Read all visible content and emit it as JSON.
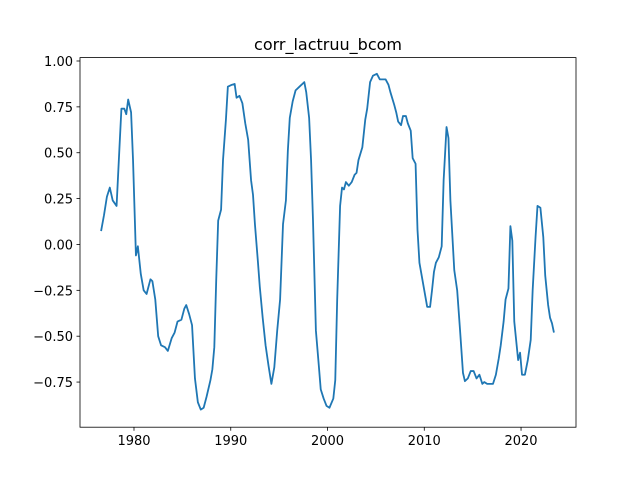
{
  "chart_data": {
    "type": "line",
    "title": "corr_lactruu_bcom",
    "color": "#1f77b4",
    "x": [
      1976.6,
      1976.9,
      1977.2,
      1977.5,
      1977.8,
      1978.2,
      1978.5,
      1978.7,
      1979.0,
      1979.2,
      1979.4,
      1979.7,
      1979.9,
      1980.2,
      1980.4,
      1980.7,
      1981.0,
      1981.3,
      1981.7,
      1981.9,
      1982.2,
      1982.5,
      1982.8,
      1983.2,
      1983.5,
      1983.9,
      1984.2,
      1984.5,
      1984.9,
      1985.2,
      1985.4,
      1985.7,
      1986.0,
      1986.3,
      1986.6,
      1986.9,
      1987.2,
      1987.5,
      1987.9,
      1988.1,
      1988.3,
      1988.5,
      1988.7,
      1989.0,
      1989.2,
      1989.5,
      1989.7,
      1990.1,
      1990.4,
      1990.6,
      1990.9,
      1991.2,
      1991.5,
      1991.8,
      1992.1,
      1992.3,
      1992.5,
      1992.8,
      1993.0,
      1993.3,
      1993.6,
      1993.9,
      1994.2,
      1994.5,
      1994.8,
      1995.1,
      1995.4,
      1995.7,
      1995.9,
      1996.1,
      1996.4,
      1996.7,
      1997.1,
      1997.6,
      1997.8,
      1998.1,
      1998.3,
      1998.5,
      1998.8,
      1999.1,
      1999.3,
      1999.6,
      1999.9,
      2000.2,
      2000.6,
      2000.8,
      2001.0,
      2001.3,
      2001.5,
      2001.7,
      2001.9,
      2002.2,
      2002.5,
      2002.8,
      2003.0,
      2003.2,
      2003.6,
      2003.9,
      2004.1,
      2004.4,
      2004.7,
      2005.1,
      2005.4,
      2005.7,
      2006.0,
      2006.3,
      2006.5,
      2006.9,
      2007.1,
      2007.3,
      2007.6,
      2007.8,
      2008.1,
      2008.3,
      2008.6,
      2008.8,
      2009.1,
      2009.3,
      2009.5,
      2009.8,
      2010.0,
      2010.3,
      2010.6,
      2010.8,
      2011.0,
      2011.2,
      2011.5,
      2011.8,
      2012.0,
      2012.3,
      2012.5,
      2012.7,
      2013.1,
      2013.4,
      2013.7,
      2014.0,
      2014.2,
      2014.5,
      2014.8,
      2015.1,
      2015.4,
      2015.7,
      2016.0,
      2016.2,
      2016.5,
      2016.8,
      2017.1,
      2017.4,
      2017.7,
      2017.9,
      2018.2,
      2018.4,
      2018.7,
      2018.9,
      2019.1,
      2019.3,
      2019.7,
      2019.9,
      2020.1,
      2020.4,
      2020.7,
      2021.0,
      2021.2,
      2021.5,
      2021.7,
      2022.0,
      2022.3,
      2022.5,
      2022.8,
      2023.0,
      2023.2,
      2023.4
    ],
    "values": [
      0.073,
      0.16,
      0.26,
      0.31,
      0.24,
      0.21,
      0.53,
      0.74,
      0.74,
      0.71,
      0.79,
      0.72,
      0.46,
      -0.06,
      -0.01,
      -0.16,
      -0.25,
      -0.27,
      -0.19,
      -0.2,
      -0.3,
      -0.5,
      -0.55,
      -0.56,
      -0.58,
      -0.51,
      -0.48,
      -0.42,
      -0.41,
      -0.35,
      -0.33,
      -0.38,
      -0.44,
      -0.73,
      -0.86,
      -0.9,
      -0.89,
      -0.83,
      -0.74,
      -0.68,
      -0.56,
      -0.19,
      0.13,
      0.19,
      0.46,
      0.68,
      0.86,
      0.87,
      0.875,
      0.8,
      0.81,
      0.77,
      0.66,
      0.57,
      0.35,
      0.27,
      0.11,
      -0.09,
      -0.23,
      -0.4,
      -0.55,
      -0.66,
      -0.76,
      -0.67,
      -0.47,
      -0.3,
      0.11,
      0.24,
      0.51,
      0.69,
      0.78,
      0.84,
      0.86,
      0.885,
      0.83,
      0.69,
      0.46,
      0.13,
      -0.47,
      -0.66,
      -0.79,
      -0.84,
      -0.88,
      -0.89,
      -0.84,
      -0.74,
      -0.3,
      0.21,
      0.31,
      0.3,
      0.34,
      0.32,
      0.34,
      0.38,
      0.39,
      0.46,
      0.53,
      0.68,
      0.74,
      0.885,
      0.92,
      0.93,
      0.9,
      0.9,
      0.9,
      0.87,
      0.83,
      0.76,
      0.72,
      0.67,
      0.65,
      0.7,
      0.7,
      0.66,
      0.62,
      0.47,
      0.44,
      0.08,
      -0.1,
      -0.19,
      -0.25,
      -0.34,
      -0.34,
      -0.25,
      -0.15,
      -0.1,
      -0.07,
      -0.01,
      0.35,
      0.64,
      0.58,
      0.24,
      -0.14,
      -0.25,
      -0.47,
      -0.7,
      -0.745,
      -0.73,
      -0.69,
      -0.69,
      -0.73,
      -0.71,
      -0.76,
      -0.75,
      -0.76,
      -0.76,
      -0.76,
      -0.71,
      -0.62,
      -0.55,
      -0.42,
      -0.3,
      -0.24,
      0.1,
      0.02,
      -0.42,
      -0.63,
      -0.59,
      -0.71,
      -0.71,
      -0.63,
      -0.52,
      -0.25,
      0.04,
      0.21,
      0.2,
      0.04,
      -0.17,
      -0.33,
      -0.4,
      -0.43,
      -0.48
    ],
    "xlim": [
      1974.42,
      2025.68
    ],
    "ylim": [
      -0.996,
      1.0185
    ],
    "xticks": [
      1980,
      1990,
      2000,
      2010,
      2020
    ],
    "yticks": [
      {
        "value": -0.75,
        "label": "−0.75"
      },
      {
        "value": -0.5,
        "label": "−0.50"
      },
      {
        "value": -0.25,
        "label": "−0.25"
      },
      {
        "value": 0,
        "label": "0.00"
      },
      {
        "value": 0.25,
        "label": "0.25"
      },
      {
        "value": 0.5,
        "label": "0.50"
      },
      {
        "value": 0.75,
        "label": "0.75"
      },
      {
        "value": 1,
        "label": "1.00"
      }
    ]
  }
}
